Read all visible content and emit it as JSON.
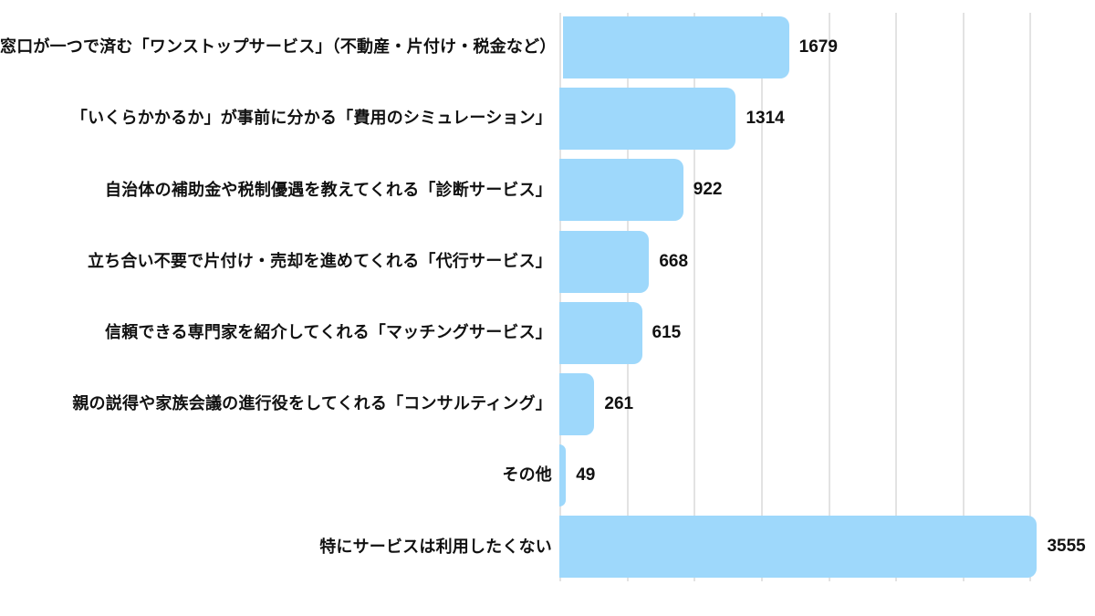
{
  "chart_data": {
    "type": "bar",
    "orientation": "horizontal",
    "title": "",
    "xlabel": "",
    "ylabel": "",
    "legend": "none",
    "grid": "vertical",
    "xlim": [
      0,
      4000
    ],
    "grid_step": 500,
    "categories": [
      "窓口が一つで済む「ワンストップサービス」（不動産・片付け・税金など）",
      "「いくらかかるか」が事前に分かる「費用のシミュレーション」",
      "自治体の補助金や税制優遇を教えてくれる「診断サービス」",
      "立ち合い不要で片付け・売却を進めてくれる「代行サービス」",
      "信頼できる専門家を紹介してくれる「マッチングサービス」",
      "親の説得や家族会議の進行役をしてくれる「コンサルティング」",
      "その他",
      "特にサービスは利用したくない"
    ],
    "values": [
      1679,
      1314,
      922,
      668,
      615,
      261,
      49,
      3555
    ],
    "value_labels": [
      "1679",
      "1314",
      "922",
      "668",
      "615",
      "261",
      "49",
      "3555"
    ],
    "colors": {
      "bar_fill": "#9ED8FB",
      "gridline": "#E3E3E3",
      "category_text": "#111111",
      "value_text": "#111111",
      "background": "#FFFFFF"
    }
  }
}
